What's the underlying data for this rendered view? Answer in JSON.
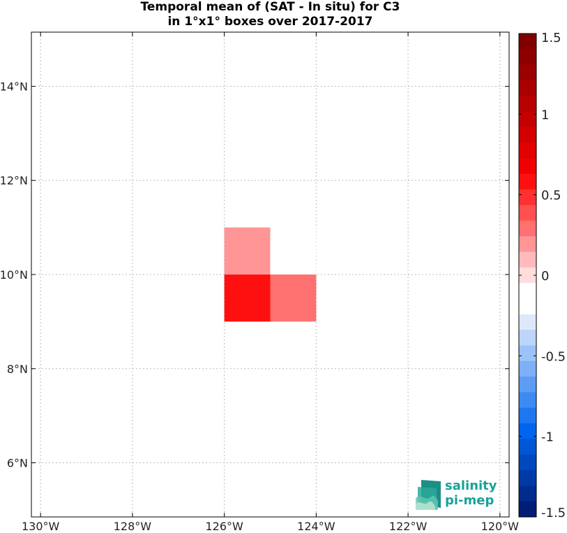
{
  "chart_data": {
    "type": "heatmap",
    "title": "Temporal mean of (SAT - In situ) for C3",
    "subtitle": "in 1°x1° boxes over 2017-2017",
    "xlabel": "",
    "ylabel": "",
    "xlim": [
      -130.2,
      -119.8
    ],
    "ylim": [
      4.85,
      15.15
    ],
    "x_ticks": [
      -130,
      -128,
      -126,
      -124,
      -122,
      -120
    ],
    "x_tick_labels": [
      "130°W",
      "128°W",
      "126°W",
      "124°W",
      "122°W",
      "120°W"
    ],
    "y_ticks": [
      6,
      8,
      10,
      12,
      14
    ],
    "y_tick_labels": [
      "6°N",
      "8°N",
      "10°N",
      "12°N",
      "14°N"
    ],
    "grid": true,
    "cells": [
      {
        "lon": [
          -126,
          -125
        ],
        "lat": [
          10,
          11
        ],
        "value": 0.18
      },
      {
        "lon": [
          -125,
          -124
        ],
        "lat": [
          10,
          11
        ],
        "value": -0.12
      },
      {
        "lon": [
          -126,
          -125
        ],
        "lat": [
          9,
          10
        ],
        "value": 0.62
      },
      {
        "lon": [
          -125,
          -124
        ],
        "lat": [
          9,
          10
        ],
        "value": 0.32
      }
    ],
    "colorbar": {
      "range": [
        -1.5,
        1.5
      ],
      "step": 0.1,
      "ticks": [
        1.5,
        1,
        0.5,
        0,
        -0.5,
        -1,
        -1.5
      ],
      "tick_labels": [
        "1.5",
        "1",
        "0.5",
        "0",
        "-0.5",
        "-1",
        "-1.5"
      ],
      "colors": [
        "#800000",
        "#8e0000",
        "#9c0000",
        "#aa0000",
        "#b80000",
        "#c60000",
        "#d40000",
        "#e20000",
        "#f00000",
        "#ff1010",
        "#ff3030",
        "#ff5050",
        "#ff7070",
        "#ff9595",
        "#ffbbbb",
        "#ffdddd",
        "#ffffff",
        "#ffffff",
        "#dde9fb",
        "#bcd6fa",
        "#9cc3f8",
        "#7db0f6",
        "#5c9df4",
        "#3d8bf2",
        "#1c77f0",
        "#0064ee",
        "#0056d6",
        "#0048be",
        "#003aa6",
        "#002c8e",
        "#001e76"
      ]
    }
  },
  "logo": {
    "line1": "salinity",
    "line2": "pi-mep",
    "colors": [
      "#1a8f86",
      "#2aa99a",
      "#66c6b2",
      "#b4e2d2"
    ]
  }
}
